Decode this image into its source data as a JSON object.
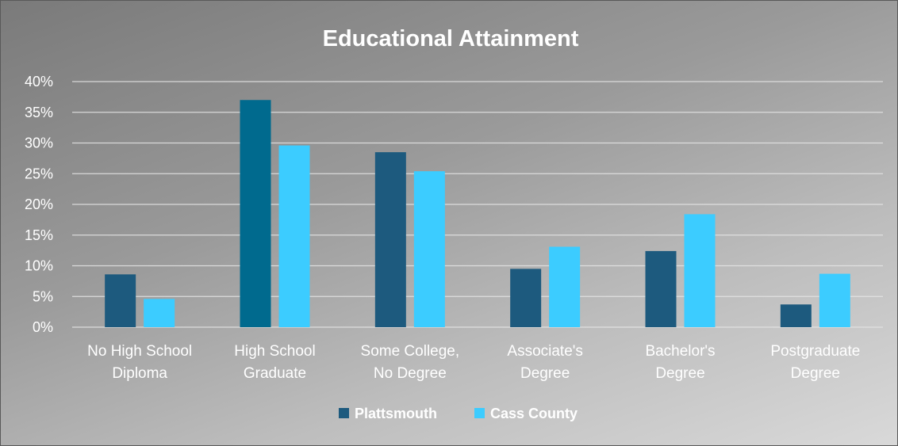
{
  "chart_data": {
    "type": "bar",
    "title": "Educational Attainment",
    "categories": [
      [
        "No High School",
        "Diploma"
      ],
      [
        "High School",
        "Graduate"
      ],
      [
        "Some College,",
        "No Degree"
      ],
      [
        "Associate's",
        "Degree"
      ],
      [
        "Bachelor's",
        "Degree"
      ],
      [
        "Postgraduate",
        "Degree"
      ]
    ],
    "series": [
      {
        "name": "Plattsmouth",
        "color": "#1d5a7e",
        "values": [
          8.6,
          37.0,
          28.5,
          9.5,
          12.4,
          3.7
        ]
      },
      {
        "name": "Cass County",
        "color": "#3cccff",
        "values": [
          4.6,
          29.6,
          25.4,
          13.1,
          18.4,
          8.7
        ]
      }
    ],
    "highlight": {
      "series": 0,
      "index": 1,
      "color": "#006a8e"
    },
    "ylim": [
      0,
      40
    ],
    "yticks": [
      "0%",
      "5%",
      "10%",
      "15%",
      "20%",
      "25%",
      "30%",
      "35%",
      "40%"
    ],
    "grid": true,
    "legend_position": "bottom"
  }
}
